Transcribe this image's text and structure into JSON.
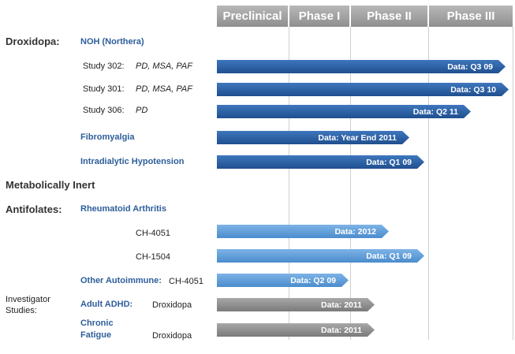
{
  "phases": [
    "Preclinical",
    "Phase I",
    "Phase II",
    "Phase III"
  ],
  "categories": {
    "droxidopa": "Droxidopa:",
    "metabolically_inert": "Metabolically Inert",
    "antifolates": "Antifolates:",
    "investigator_line1": "Investigator",
    "investigator_line2": "Studies:"
  },
  "indications": {
    "noh": "NOH (Northera)",
    "fibromyalgia": "Fibromyalgia",
    "ih": "Intradialytic Hypotension",
    "ra": "Rheumatoid Arthritis",
    "other_autoimmune": "Other Autoimmune:",
    "adult_adhd": "Adult  ADHD:",
    "chronic": "Chronic",
    "fatigue": "Fatigue"
  },
  "studies": {
    "s302": "Study 302:",
    "s302_pop": "PD, MSA, PAF",
    "s301": "Study 301:",
    "s301_pop": "PD, MSA, PAF",
    "s306": "Study 306:",
    "s306_pop": "PD",
    "ch4051_ra": "CH-4051",
    "ch1504": "CH-1504",
    "ch4051_other": "CH-4051",
    "droxidopa_adhd": "Droxidopa",
    "droxidopa_cf": "Droxidopa"
  },
  "bars": [
    {
      "id": "study-302",
      "label": "Data: Q3 09",
      "style": "dark",
      "progress": 0.99
    },
    {
      "id": "study-301",
      "label": "Data: Q3 10",
      "style": "dark",
      "progress": 1.0
    },
    {
      "id": "study-306",
      "label": "Data: Q2 11",
      "style": "dark",
      "progress": 0.87
    },
    {
      "id": "fibromyalgia",
      "label": "Data: Year End 2011",
      "style": "dark",
      "progress": 0.66
    },
    {
      "id": "intradialytic-hypotension",
      "label": "Data: Q1 09",
      "style": "dark",
      "progress": 0.71
    },
    {
      "id": "ch-4051-ra",
      "label": "Data: 2012",
      "style": "light",
      "progress": 0.59
    },
    {
      "id": "ch-1504",
      "label": "Data: Q1 09",
      "style": "light",
      "progress": 0.71
    },
    {
      "id": "ch-4051-other",
      "label": "Data: Q2 09",
      "style": "light",
      "progress": 0.45
    },
    {
      "id": "adult-adhd",
      "label": "Data: 2011",
      "style": "gray",
      "progress": 0.54
    },
    {
      "id": "chronic-fatigue",
      "label": "Data: 2011",
      "style": "gray",
      "progress": 0.54
    }
  ],
  "colors": {
    "dark_bar": "#2a5fa3",
    "light_bar": "#5b9bd5",
    "gray_bar": "#8c8c8c",
    "indication_text": "#2e5e9a",
    "header": "#a0a0a0"
  }
}
